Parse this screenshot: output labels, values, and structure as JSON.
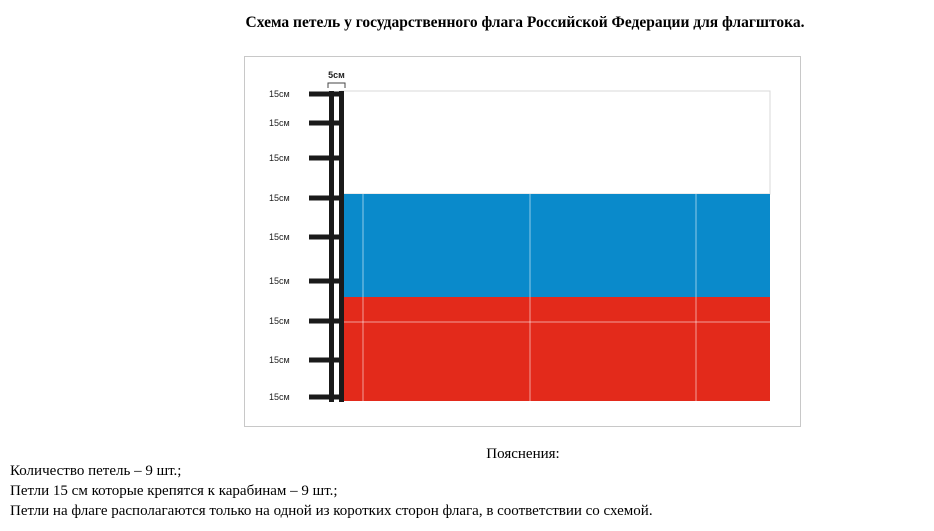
{
  "title": "Схема петель у государственного флага Российской Федерации для флагштока.",
  "diagram": {
    "sleeve_width_label": "5см",
    "loop_labels": [
      "15см",
      "15см",
      "15см",
      "15см",
      "15см",
      "15см",
      "15см",
      "15см",
      "15см"
    ],
    "flag_colors": {
      "white": "#ffffff",
      "blue": "#0a8acb",
      "red": "#e32a1b",
      "pole": "#1a1a1a"
    }
  },
  "notes": {
    "heading": "Пояснения:",
    "lines": [
      "Количество петель – 9 шт.;",
      "Петли 15 см которые крепятся к карабинам – 9 шт.;",
      "Петли на флаге располагаются только на одной из коротких сторон флага, в соответствии со схемой."
    ]
  }
}
